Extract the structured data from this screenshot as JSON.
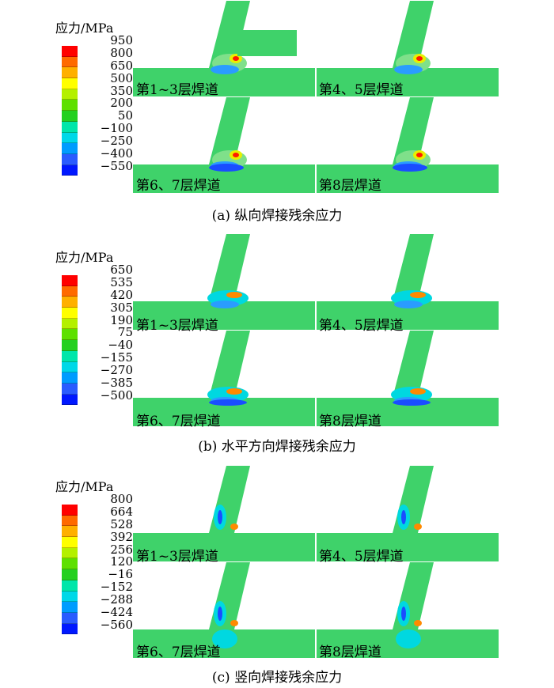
{
  "legend_colors": [
    "#ff0000",
    "#ff6a00",
    "#ffb000",
    "#ffff00",
    "#b4f000",
    "#5ee000",
    "#24d020",
    "#00e6aa",
    "#00d8e8",
    "#009cff",
    "#2a5cff",
    "#0018ff"
  ],
  "panels": [
    {
      "id": "a",
      "legend_title": "应力/MPa",
      "ticks": [
        "950",
        "800",
        "650",
        "500",
        "350",
        "200",
        "50",
        "−100",
        "−250",
        "−400",
        "−550"
      ],
      "layers": [
        "第1~3层焊道",
        "第4、5层焊道",
        "第6、7层焊道",
        "第8层焊道"
      ],
      "caption": "(a)    纵向焊接残余应力"
    },
    {
      "id": "b",
      "legend_title": "应力/MPa",
      "ticks": [
        "650",
        "535",
        "420",
        "305",
        "190",
        "75",
        "−40",
        "−155",
        "−270",
        "−385",
        "−500"
      ],
      "layers": [
        "第1~3层焊道",
        "第4、5层焊道",
        "第6、7层焊道",
        "第8层焊道"
      ],
      "caption": "(b)    水平方向焊接残余应力"
    },
    {
      "id": "c",
      "legend_title": "应力/MPa",
      "ticks": [
        "800",
        "664",
        "528",
        "392",
        "256",
        "120",
        "−16",
        "−152",
        "−288",
        "−424",
        "−560"
      ],
      "layers": [
        "第1~3层焊道",
        "第4、5层焊道",
        "第6、7层焊道",
        "第8层焊道"
      ],
      "caption": "(c)    竖向焊接残余应力"
    }
  ]
}
